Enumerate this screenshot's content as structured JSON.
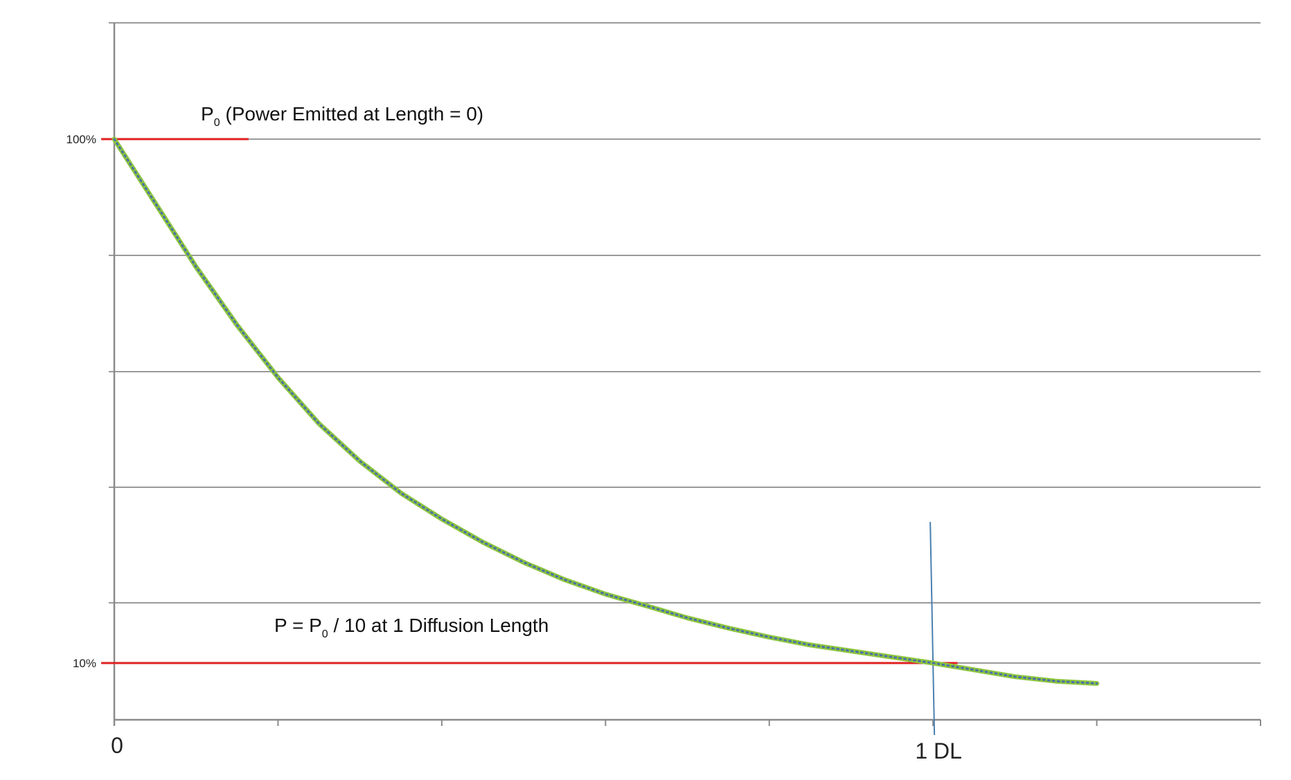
{
  "chart_data": {
    "type": "line",
    "title": "",
    "xlabel": "",
    "ylabel": "",
    "x_ticks": [
      0,
      1,
      2,
      3,
      4,
      5,
      6,
      7
    ],
    "x_tick_labels": [
      {
        "x": 0,
        "label": "0"
      },
      {
        "x": 5,
        "label": "1 DL"
      }
    ],
    "y_ticks": [
      0.05,
      0.1,
      0.2,
      0.4,
      0.6,
      0.8,
      1.0,
      1.2
    ],
    "y_tick_labels": [
      {
        "y": 1.0,
        "label": "100%"
      },
      {
        "y": 0.1,
        "label": "10%"
      }
    ],
    "xlim": [
      0,
      7
    ],
    "ylim": [
      0.05,
      1.2
    ],
    "grid": "horizontal",
    "series": [
      {
        "x": [
          0,
          0.25,
          0.5,
          0.75,
          1,
          1.25,
          1.5,
          1.75,
          2,
          2.25,
          2.5,
          2.75,
          3,
          3.25,
          3.5,
          3.75,
          4,
          4.25,
          4.5,
          4.75,
          5,
          5.25,
          5.5,
          5.75,
          6
        ],
        "y": [
          1.0,
          0.89,
          0.78,
          0.68,
          0.59,
          0.51,
          0.445,
          0.39,
          0.345,
          0.305,
          0.27,
          0.24,
          0.215,
          0.195,
          0.175,
          0.158,
          0.143,
          0.13,
          0.12,
          0.11,
          0.1,
          0.094,
          0.088,
          0.084,
          0.082
        ],
        "color": "#8dc63f",
        "dot_color": "#4a6fa5"
      }
    ],
    "reference_lines": [
      {
        "y": 1.0,
        "x_from": -0.08,
        "x_to": 0.82,
        "color": "#e02020",
        "label": "P0 (Power Emitted at Length = 0)"
      },
      {
        "y": 0.1,
        "x_from": -0.08,
        "x_to": 5.15,
        "color": "#e02020",
        "label": "P = P0 / 10 at 1 Diffusion Length"
      }
    ],
    "marker_line": {
      "x": 5,
      "y_from": 0.05,
      "y_to": 0.34,
      "color": "#4a7fb0"
    },
    "annotations": {
      "p0": {
        "main": "P",
        "sub": "0",
        "rest": " (Power Emitted at Length = 0)"
      },
      "dl": {
        "main": "P = P",
        "sub": "0",
        "rest": " / 10 at 1 Diffusion Length"
      }
    }
  }
}
